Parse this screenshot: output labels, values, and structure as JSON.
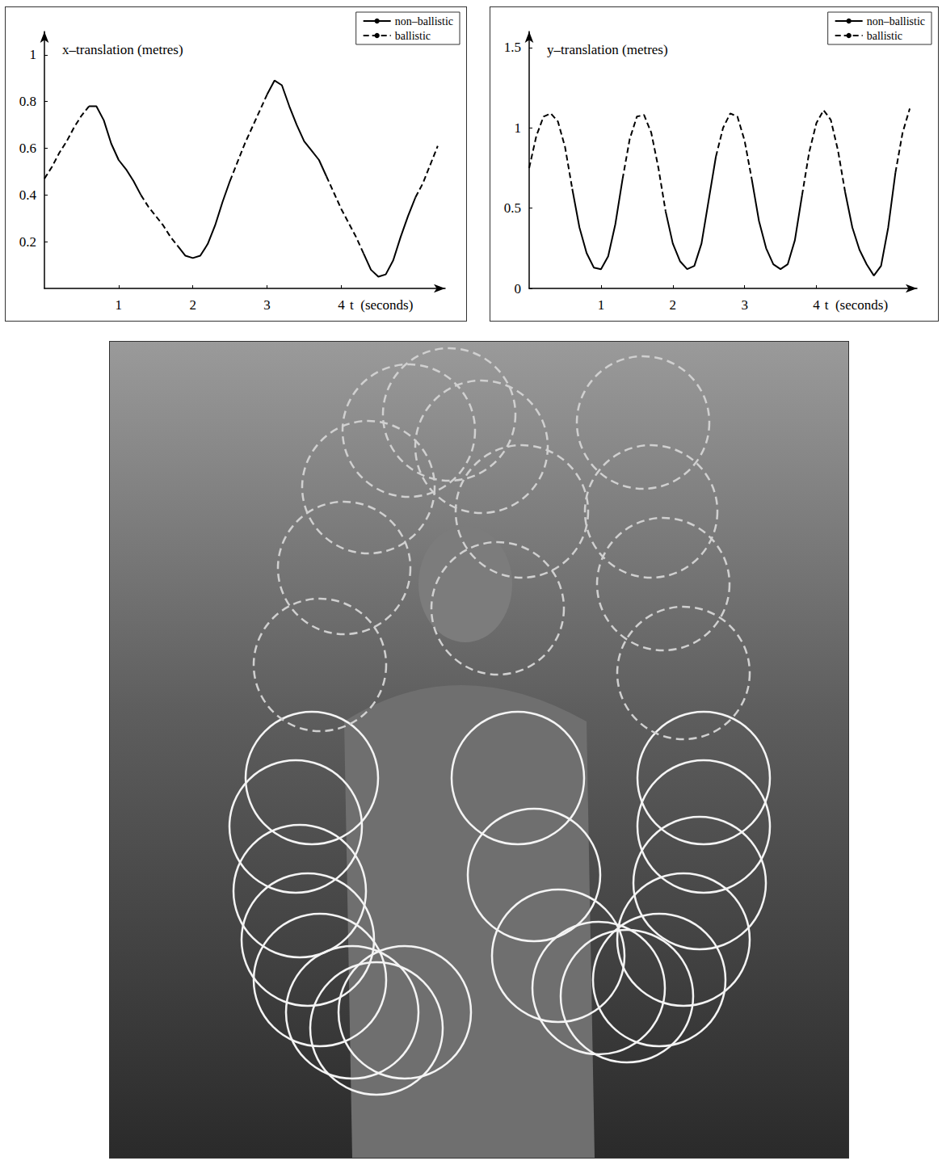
{
  "chart_data": [
    {
      "type": "line",
      "y_label": "x–translation (metres)",
      "x_label": "t  (seconds)",
      "xlim": [
        0,
        5.4
      ],
      "xticks": [
        1,
        2,
        3,
        4
      ],
      "ylim": [
        0,
        1.1
      ],
      "yticks": [
        0.2,
        0.4,
        0.6,
        0.8,
        1
      ],
      "grid": false,
      "legend": "top-right",
      "x": [
        0,
        0.1,
        0.2,
        0.3,
        0.4,
        0.5,
        0.6,
        0.7,
        0.8,
        0.9,
        1,
        1.1,
        1.2,
        1.3,
        1.4,
        1.5,
        1.6,
        1.7,
        1.8,
        1.9,
        2,
        2.1,
        2.2,
        2.3,
        2.4,
        2.5,
        2.6,
        2.7,
        2.8,
        2.9,
        3,
        3.1,
        3.2,
        3.3,
        3.4,
        3.5,
        3.6,
        3.7,
        3.8,
        3.9,
        4,
        4.1,
        4.2,
        4.3,
        4.4,
        4.5,
        4.6,
        4.7,
        4.8,
        4.9,
        5,
        5.1,
        5.2,
        5.3
      ],
      "series": [
        {
          "name": "non–ballistic",
          "color": "#000000",
          "line_style": "solid",
          "values": [
            null,
            null,
            null,
            null,
            null,
            null,
            0.78,
            0.78,
            0.72,
            0.62,
            0.55,
            0.51,
            0.46,
            0.4,
            null,
            null,
            null,
            null,
            0.18,
            0.14,
            0.13,
            0.14,
            0.19,
            0.27,
            0.37,
            0.46,
            null,
            null,
            null,
            null,
            0.83,
            0.89,
            0.87,
            0.78,
            0.7,
            0.63,
            0.59,
            0.55,
            0.48,
            null,
            null,
            null,
            null,
            0.15,
            0.08,
            0.05,
            0.06,
            0.12,
            0.22,
            0.31,
            0.39,
            null,
            null,
            null
          ]
        },
        {
          "name": "ballistic",
          "color": "#000000",
          "line_style": "dashed",
          "values": [
            0.47,
            0.52,
            0.58,
            0.63,
            0.69,
            0.74,
            0.78,
            null,
            null,
            null,
            null,
            null,
            null,
            0.4,
            0.35,
            0.31,
            0.27,
            0.22,
            0.18,
            null,
            null,
            null,
            null,
            null,
            null,
            0.46,
            0.54,
            0.62,
            0.69,
            0.76,
            0.83,
            null,
            null,
            null,
            null,
            null,
            null,
            null,
            0.48,
            0.41,
            0.34,
            0.28,
            0.22,
            0.15,
            null,
            null,
            null,
            null,
            null,
            null,
            0.39,
            0.45,
            0.53,
            0.61
          ]
        }
      ]
    },
    {
      "type": "line",
      "y_label": "y–translation (metres)",
      "x_label": "t  (seconds)",
      "xlim": [
        0,
        5.4
      ],
      "xticks": [
        1,
        2,
        3,
        4
      ],
      "ylim": [
        0,
        1.6
      ],
      "yticks": [
        0,
        0.5,
        1,
        1.5
      ],
      "grid": false,
      "legend": "top-right",
      "x": [
        0,
        0.1,
        0.2,
        0.3,
        0.4,
        0.5,
        0.6,
        0.7,
        0.8,
        0.9,
        1,
        1.1,
        1.2,
        1.3,
        1.4,
        1.5,
        1.6,
        1.7,
        1.8,
        1.9,
        2,
        2.1,
        2.2,
        2.3,
        2.4,
        2.5,
        2.6,
        2.7,
        2.8,
        2.9,
        3,
        3.1,
        3.2,
        3.3,
        3.4,
        3.5,
        3.6,
        3.7,
        3.8,
        3.9,
        4,
        4.1,
        4.2,
        4.3,
        4.4,
        4.5,
        4.6,
        4.7,
        4.8,
        4.9,
        5,
        5.1,
        5.2,
        5.3
      ],
      "series": [
        {
          "name": "non–ballistic",
          "color": "#000000",
          "line_style": "solid",
          "values": [
            null,
            null,
            null,
            null,
            null,
            null,
            0.62,
            0.38,
            0.22,
            0.13,
            0.12,
            0.2,
            0.4,
            0.68,
            null,
            null,
            null,
            null,
            null,
            0.48,
            0.28,
            0.17,
            0.12,
            0.14,
            0.28,
            0.55,
            0.82,
            null,
            null,
            null,
            null,
            0.68,
            0.42,
            0.25,
            0.15,
            0.12,
            0.15,
            0.3,
            0.58,
            null,
            null,
            null,
            null,
            null,
            0.6,
            0.38,
            0.24,
            0.15,
            0.08,
            0.14,
            0.38,
            0.72,
            null,
            null
          ]
        },
        {
          "name": "ballistic",
          "color": "#000000",
          "line_style": "dashed",
          "values": [
            0.75,
            0.95,
            1.07,
            1.09,
            1.04,
            0.88,
            0.62,
            null,
            null,
            null,
            null,
            null,
            null,
            0.68,
            0.93,
            1.07,
            1.08,
            0.97,
            0.75,
            0.48,
            null,
            null,
            null,
            null,
            null,
            null,
            0.82,
            1.0,
            1.09,
            1.07,
            0.92,
            0.68,
            null,
            null,
            null,
            null,
            null,
            null,
            0.58,
            0.85,
            1.03,
            1.11,
            1.05,
            0.86,
            0.6,
            null,
            null,
            null,
            null,
            null,
            null,
            0.72,
            0.97,
            1.12
          ]
        }
      ]
    }
  ]
}
